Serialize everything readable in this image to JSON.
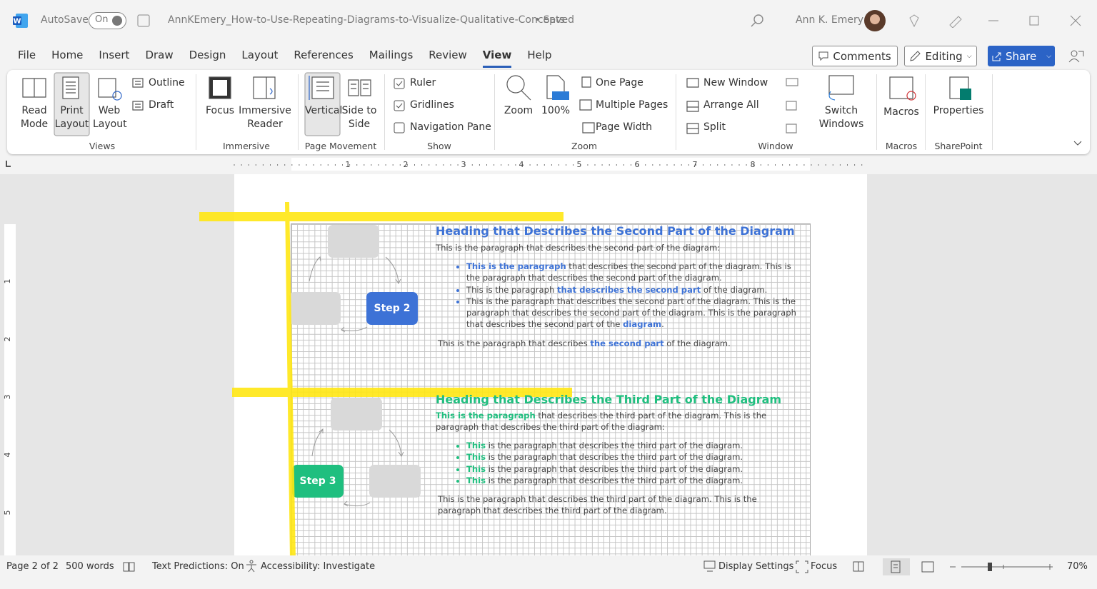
{
  "titlebar": {
    "autosave": "AutoSave",
    "toggle": "On",
    "filename": "AnnKEmery_How-to-Use-Repeating-Diagrams-to-Visualize-Qualitative-Concepts",
    "status": "• Saved",
    "user": "Ann K. Emery"
  },
  "menu": {
    "tabs": [
      "File",
      "Home",
      "Insert",
      "Draw",
      "Design",
      "Layout",
      "References",
      "Mailings",
      "Review",
      "View",
      "Help"
    ],
    "comments": "Comments",
    "editing": "Editing",
    "share": "Share"
  },
  "ribbon": {
    "views": {
      "label": "Views",
      "read_mode": "Read Mode",
      "print_layout": "Print Layout",
      "web_layout": "Web Layout",
      "outline": "Outline",
      "draft": "Draft"
    },
    "immersive": {
      "label": "Immersive",
      "focus": "Focus",
      "immersive_reader": "Immersive Reader"
    },
    "page_movement": {
      "label": "Page Movement",
      "vertical": "Vertical",
      "side_to_side": "Side to Side"
    },
    "show": {
      "label": "Show",
      "ruler": "Ruler",
      "gridlines": "Gridlines",
      "navigation_pane": "Navigation Pane"
    },
    "zoom": {
      "label": "Zoom",
      "zoom": "Zoom",
      "hundred": "100%",
      "one_page": "One Page",
      "multiple_pages": "Multiple Pages",
      "page_width": "Page Width"
    },
    "window": {
      "label": "Window",
      "new_window": "New Window",
      "arrange_all": "Arrange All",
      "split": "Split",
      "switch_windows": "Switch Windows"
    },
    "macros": {
      "label": "Macros",
      "macros": "Macros"
    },
    "sharepoint": {
      "label": "SharePoint",
      "properties": "Properties"
    }
  },
  "ruler": {
    "horizontal": [
      1,
      2,
      3,
      4,
      5,
      6,
      7,
      8
    ],
    "vertical": [
      1,
      2,
      3,
      4,
      5
    ]
  },
  "document": {
    "sections": [
      {
        "color": "#3d72d6",
        "step": "Step 2",
        "heading": "Heading that Describes the Second Part of the Diagram",
        "intro": [
          {
            "text": "This is the paragraph that describes the second part of the diagram:"
          }
        ],
        "bullets": [
          [
            {
              "text": "This is the paragraph",
              "em": true
            },
            {
              "text": " that describes the second part of the diagram. This is the paragraph that describes the second part of the diagram."
            }
          ],
          [
            {
              "text": "This is the paragraph "
            },
            {
              "text": "that describes the second part",
              "em": true
            },
            {
              "text": " of the diagram."
            }
          ],
          [
            {
              "text": "This is the paragraph that describes the second part of the diagram. This is the paragraph that describes the second part of the diagram. This is the paragraph that describes the second part of the "
            },
            {
              "text": "diagram",
              "em": true
            },
            {
              "text": "."
            }
          ]
        ],
        "closing": [
          {
            "text": "This is the paragraph that describes "
          },
          {
            "text": "the second part",
            "em": true
          },
          {
            "text": " of the diagram."
          }
        ]
      },
      {
        "color": "#1fbf7f",
        "step": "Step 3",
        "heading": "Heading that Describes the Third Part of the Diagram",
        "intro": [
          {
            "text": "This is the paragraph",
            "em": true
          },
          {
            "text": " that describes the third part of the diagram. This is the paragraph that describes the third part of the diagram:"
          }
        ],
        "bullets": [
          [
            {
              "text": "This",
              "em": true
            },
            {
              "text": " is the paragraph that describes the third part of the diagram."
            }
          ],
          [
            {
              "text": "This",
              "em": true
            },
            {
              "text": " is the paragraph that describes the third part of the diagram."
            }
          ],
          [
            {
              "text": "This",
              "em": true
            },
            {
              "text": " is the paragraph that describes the third part of the diagram."
            }
          ],
          [
            {
              "text": "This",
              "em": true
            },
            {
              "text": " is the paragraph that describes the third part of the diagram."
            }
          ]
        ],
        "closing": [
          {
            "text": "This is the paragraph that describes the third part of the diagram. This is the paragraph that describes the third part of the diagram."
          }
        ]
      }
    ]
  },
  "statusbar": {
    "page": "Page 2 of 2",
    "words": "500 words",
    "predictions": "Text Predictions: On",
    "accessibility": "Accessibility: Investigate",
    "display": "Display Settings",
    "focus": "Focus",
    "zoom": "70%"
  }
}
